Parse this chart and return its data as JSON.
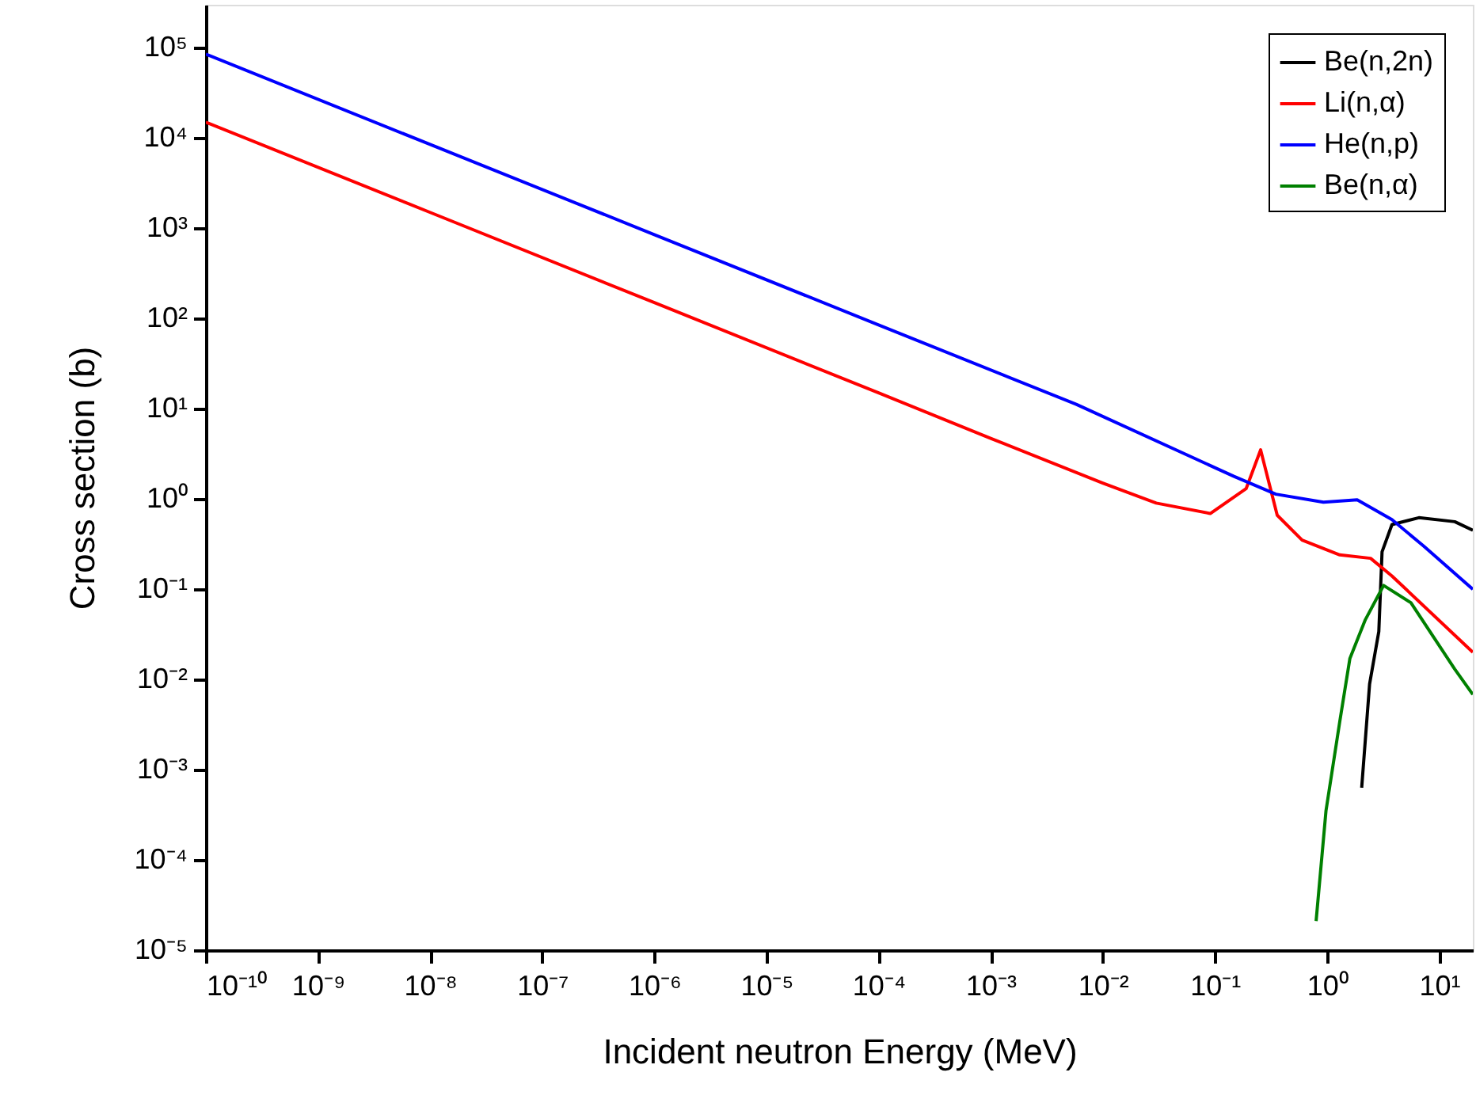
{
  "chart_data": {
    "type": "line",
    "xlabel": "Incident neutron Energy (MeV)",
    "ylabel": "Cross section (b)",
    "log": "xy",
    "grid": false,
    "legend": "top right",
    "line_style": "solid",
    "marker": "none",
    "xlim": [
      1e-10,
      20
    ],
    "ylim": [
      1e-05,
      300000
    ],
    "xticks": [
      {
        "value": 1e-10,
        "label": "10⁻¹⁰"
      },
      {
        "value": 1e-09,
        "label": "10⁻⁹"
      },
      {
        "value": 1e-08,
        "label": "10⁻⁸"
      },
      {
        "value": 1e-07,
        "label": "10⁻⁷"
      },
      {
        "value": 1e-06,
        "label": "10⁻⁶"
      },
      {
        "value": 1e-05,
        "label": "10⁻⁵"
      },
      {
        "value": 0.0001,
        "label": "10⁻⁴"
      },
      {
        "value": 0.001,
        "label": "10⁻³"
      },
      {
        "value": 0.01,
        "label": "10⁻²"
      },
      {
        "value": 0.1,
        "label": "10⁻¹"
      },
      {
        "value": 1,
        "label": "10⁰"
      },
      {
        "value": 10,
        "label": "10¹"
      }
    ],
    "yticks": [
      {
        "value": 1e-05,
        "label": "10⁻⁵"
      },
      {
        "value": 0.0001,
        "label": "10⁻⁴"
      },
      {
        "value": 0.001,
        "label": "10⁻³"
      },
      {
        "value": 0.01,
        "label": "10⁻²"
      },
      {
        "value": 0.1,
        "label": "10⁻¹"
      },
      {
        "value": 1,
        "label": "10⁰"
      },
      {
        "value": 10,
        "label": "10¹"
      },
      {
        "value": 100,
        "label": "10²"
      },
      {
        "value": 1000,
        "label": "10³"
      },
      {
        "value": 10000,
        "label": "10⁴"
      },
      {
        "value": 100000,
        "label": "10⁵"
      }
    ],
    "series": [
      {
        "name": "Be(n,2n)",
        "color": "#000000",
        "x": [
          2.04,
          2.4,
          2.9,
          3.1,
          3.8,
          6.6,
          13.8,
          20
        ],
        "values": [
          0.00063,
          0.0089,
          0.034,
          0.26,
          0.52,
          0.62,
          0.56,
          0.45
        ]
      },
      {
        "name": "Li(n,α)",
        "color": "#ff0000",
        "x": [
          1e-10,
          1e-08,
          1e-06,
          0.0001,
          0.001,
          0.01,
          0.03,
          0.091,
          0.19,
          0.256,
          0.36,
          0.6,
          1.3,
          2.45,
          3.8,
          20
        ],
        "values": [
          15000,
          1500,
          150,
          15,
          4.7,
          1.5,
          0.9,
          0.69,
          1.3,
          3.5,
          0.66,
          0.35,
          0.24,
          0.22,
          0.14,
          0.02
        ]
      },
      {
        "name": "He(n,p)",
        "color": "#0000ff",
        "x": [
          1e-10,
          1e-08,
          1e-06,
          0.0001,
          0.0058,
          0.148,
          0.35,
          0.93,
          1.86,
          3.8,
          7.3,
          20
        ],
        "values": [
          85000,
          8500,
          850,
          85,
          11.2,
          1.78,
          1.13,
          0.92,
          0.98,
          0.59,
          0.3,
          0.1
        ]
      },
      {
        "name": "Be(n,α)",
        "color": "#008000",
        "x": [
          0.8,
          0.98,
          1.3,
          1.6,
          2.2,
          3.2,
          5.6,
          13.8,
          20
        ],
        "values": [
          2.1e-05,
          0.00035,
          0.0034,
          0.017,
          0.046,
          0.11,
          0.071,
          0.013,
          0.0068
        ]
      }
    ]
  }
}
